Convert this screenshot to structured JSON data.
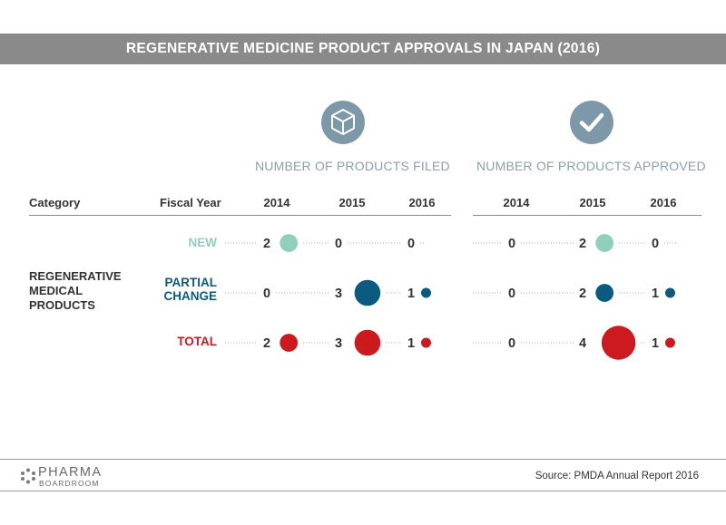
{
  "title": "REGENERATIVE MEDICINE PRODUCT APPROVALS IN JAPAN (2016)",
  "groups": [
    {
      "header": "NUMBER OF PRODUCTS FILED",
      "icon": "box-icon"
    },
    {
      "header": "NUMBER OF PRODUCTS APPROVED",
      "icon": "checkmark-icon"
    }
  ],
  "columns": {
    "category": "Category",
    "fiscal_year": "Fiscal Year"
  },
  "category_label": "REGENERATIVE MEDICAL PRODUCTS",
  "source": "Source: PMDA Annual Report 2016",
  "logo": {
    "line1": "PHARMA",
    "line2": "BOARDROOM"
  },
  "colors": {
    "new": "#8ed0bc",
    "partial_change": "#0b5a80",
    "total": "#cc1a1f",
    "icon_bg": "#7d98a8",
    "header_text": "#84a2b1",
    "title_bar": "#8a8a8a"
  },
  "chart_data": {
    "type": "bubble-table",
    "years": [
      "2014",
      "2015",
      "2016"
    ],
    "rows": [
      {
        "key": "new",
        "label": "NEW",
        "filed": [
          2,
          0,
          0
        ],
        "approved": [
          0,
          2,
          0
        ]
      },
      {
        "key": "partial_change",
        "label": "PARTIAL CHANGE",
        "filed": [
          0,
          3,
          1
        ],
        "approved": [
          0,
          2,
          1
        ]
      },
      {
        "key": "total",
        "label": "TOTAL",
        "filed": [
          2,
          3,
          1
        ],
        "approved": [
          0,
          4,
          1
        ]
      }
    ]
  }
}
